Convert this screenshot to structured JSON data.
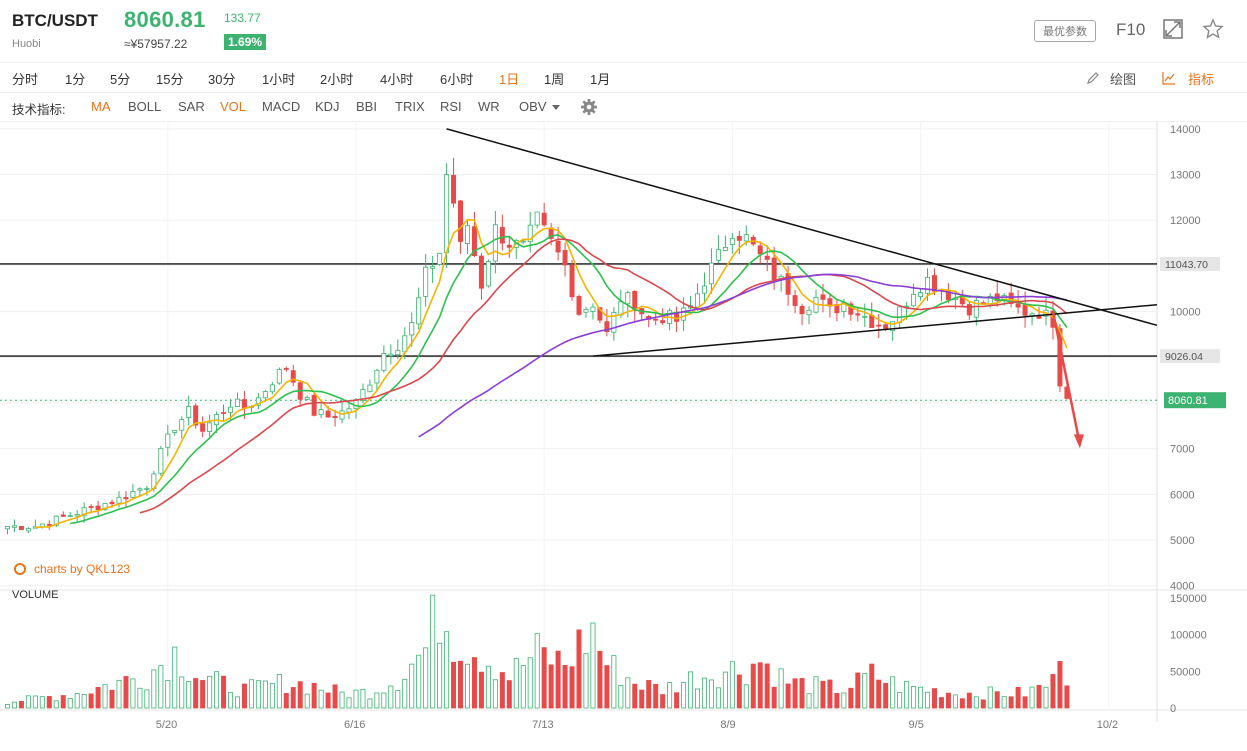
{
  "header": {
    "symbol": "BTC/USDT",
    "exchange": "Huobi",
    "price": "8060.81",
    "price_cny": "≈¥57957.22",
    "change": "133.77",
    "change_pct": "1.69%",
    "params_button": "最优参数",
    "f10_label": "F10",
    "fullscreen_icon": "expand-icon",
    "favorite_icon": "star-icon"
  },
  "intervals": [
    "分时",
    "1分",
    "5分",
    "15分",
    "30分",
    "1小时",
    "2小时",
    "4小时",
    "6小时",
    "1日",
    "1周",
    "1月"
  ],
  "active_interval": "1日",
  "tools": {
    "draw_label": "绘图",
    "indicator_label": "指标"
  },
  "indicator_bar": {
    "label": "技术指标:",
    "items": [
      "MA",
      "BOLL",
      "SAR",
      "VOL",
      "MACD",
      "KDJ",
      "BBI",
      "TRIX",
      "RSI",
      "WR",
      "OBV"
    ],
    "active": [
      "MA",
      "VOL"
    ],
    "settings_icon": "gear-icon"
  },
  "watermark": "charts by QKL123",
  "colors": {
    "up": "#3cb371",
    "down": "#e84a4a",
    "accent": "#e8731d"
  },
  "chart_data": {
    "type": "candlestick",
    "price_axis": {
      "ticks": [
        14000,
        13000,
        12000,
        11000,
        10000,
        9000,
        8000,
        7000,
        6000,
        5000,
        4000
      ],
      "range": [
        3950,
        14150
      ]
    },
    "x_labels": [
      "5/20",
      "6/16",
      "7/13",
      "8/9",
      "9/5",
      "10/2"
    ],
    "price_labels": [
      {
        "value": 11043.7,
        "text": "11043.70",
        "kind": "level"
      },
      {
        "value": 9026.04,
        "text": "9026.04",
        "kind": "level"
      },
      {
        "value": 8060.81,
        "text": "8060.81",
        "kind": "last"
      }
    ],
    "ma_colors": [
      "#f5b400",
      "#2ec04f",
      "#d9484d",
      "#8a3fd6"
    ],
    "volume": {
      "label": "VOLUME",
      "ticks": [
        150000,
        100000,
        50000,
        0
      ],
      "range": [
        0,
        150000
      ]
    },
    "close_points": [
      [
        0,
        5300
      ],
      [
        4,
        5300
      ],
      [
        8,
        5500
      ],
      [
        12,
        5700
      ],
      [
        16,
        5900
      ],
      [
        20,
        6200
      ],
      [
        22,
        6900
      ],
      [
        24,
        7500
      ],
      [
        26,
        7800
      ],
      [
        28,
        7400
      ],
      [
        30,
        7700
      ],
      [
        32,
        8000
      ],
      [
        34,
        7900
      ],
      [
        36,
        8100
      ],
      [
        38,
        8500
      ],
      [
        40,
        8800
      ],
      [
        42,
        8200
      ],
      [
        44,
        7800
      ],
      [
        46,
        7700
      ],
      [
        48,
        7800
      ],
      [
        50,
        8000
      ],
      [
        52,
        8500
      ],
      [
        54,
        9100
      ],
      [
        56,
        9300
      ],
      [
        58,
        9700
      ],
      [
        60,
        10800
      ],
      [
        62,
        11300
      ],
      [
        63,
        13000
      ],
      [
        64,
        12400
      ],
      [
        65,
        11400
      ],
      [
        66,
        11900
      ],
      [
        68,
        10600
      ],
      [
        70,
        11800
      ],
      [
        72,
        11500
      ],
      [
        74,
        11400
      ],
      [
        76,
        12000
      ],
      [
        78,
        11500
      ],
      [
        80,
        11000
      ],
      [
        82,
        10000
      ],
      [
        84,
        10200
      ],
      [
        86,
        9500
      ],
      [
        88,
        10300
      ],
      [
        90,
        10200
      ],
      [
        92,
        9800
      ],
      [
        94,
        9900
      ],
      [
        96,
        9800
      ],
      [
        98,
        10100
      ],
      [
        100,
        10700
      ],
      [
        102,
        11200
      ],
      [
        104,
        11800
      ],
      [
        106,
        11600
      ],
      [
        108,
        11200
      ],
      [
        110,
        10800
      ],
      [
        112,
        10500
      ],
      [
        114,
        10100
      ],
      [
        116,
        10300
      ],
      [
        118,
        10000
      ],
      [
        120,
        10200
      ],
      [
        122,
        10000
      ],
      [
        124,
        9800
      ],
      [
        126,
        9700
      ],
      [
        128,
        10000
      ],
      [
        130,
        10500
      ],
      [
        132,
        10700
      ],
      [
        134,
        10500
      ],
      [
        136,
        10300
      ],
      [
        138,
        10100
      ],
      [
        140,
        10200
      ],
      [
        142,
        10300
      ],
      [
        144,
        10100
      ],
      [
        146,
        10000
      ],
      [
        148,
        10000
      ],
      [
        150,
        9800
      ],
      [
        151,
        8500
      ],
      [
        152,
        8100
      ]
    ],
    "volume_points": [
      [
        0,
        8000
      ],
      [
        10,
        20000
      ],
      [
        20,
        45000
      ],
      [
        24,
        75000
      ],
      [
        28,
        40000
      ],
      [
        34,
        25000
      ],
      [
        40,
        35000
      ],
      [
        44,
        30000
      ],
      [
        48,
        20000
      ],
      [
        52,
        22000
      ],
      [
        56,
        40000
      ],
      [
        60,
        80000
      ],
      [
        62,
        140000
      ],
      [
        64,
        100000
      ],
      [
        68,
        75000
      ],
      [
        72,
        45000
      ],
      [
        76,
        75000
      ],
      [
        80,
        60000
      ],
      [
        82,
        85000
      ],
      [
        84,
        105000
      ],
      [
        86,
        60000
      ],
      [
        90,
        35000
      ],
      [
        94,
        25000
      ],
      [
        98,
        40000
      ],
      [
        102,
        50000
      ],
      [
        106,
        55000
      ],
      [
        108,
        65000
      ],
      [
        112,
        35000
      ],
      [
        116,
        30000
      ],
      [
        120,
        25000
      ],
      [
        124,
        45000
      ],
      [
        128,
        30000
      ],
      [
        132,
        25000
      ],
      [
        136,
        20000
      ],
      [
        140,
        20000
      ],
      [
        146,
        20000
      ],
      [
        150,
        35000
      ],
      [
        151,
        100000
      ],
      [
        152,
        45000
      ]
    ]
  }
}
